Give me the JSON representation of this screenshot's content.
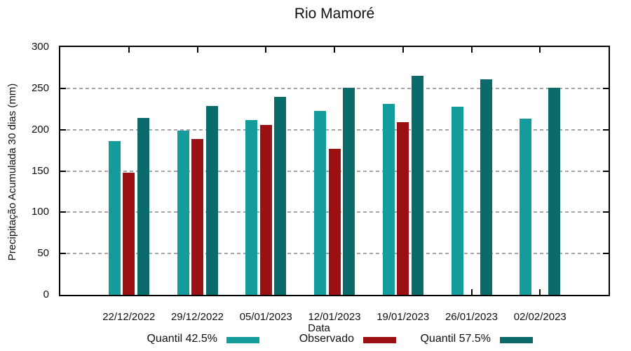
{
  "title": "Rio Mamoré",
  "colors": {
    "quantil_425": "#149b9b",
    "observado": "#9b1113",
    "quantil_575": "#0b6b6b",
    "grid": "#a6a6a6",
    "axis": "#000000"
  },
  "chart_data": {
    "type": "bar",
    "title": "Rio Mamoré",
    "xlabel": "Data",
    "ylabel": "Precipitação Acumulada 30 dias (mm)",
    "ylim": [
      0,
      300
    ],
    "yticks": [
      0,
      50,
      100,
      150,
      200,
      250,
      300
    ],
    "grid": "horizontal dotted gray lines at each ytick",
    "legend_position": "bottom, below x axis",
    "categories": [
      "22/12/2022",
      "29/12/2022",
      "05/01/2023",
      "12/01/2023",
      "19/01/2023",
      "26/01/2023",
      "02/02/2023"
    ],
    "series": [
      {
        "name": "Quantil 42.5%",
        "color": "#149b9b",
        "values": [
          186,
          199,
          212,
          223,
          231,
          228,
          213
        ]
      },
      {
        "name": "Observado",
        "color": "#9b1113",
        "values": [
          148,
          189,
          206,
          177,
          209,
          null,
          null
        ]
      },
      {
        "name": "Quantil 57.5%",
        "color": "#0b6b6b",
        "values": [
          214,
          229,
          240,
          251,
          265,
          261,
          251
        ]
      }
    ]
  }
}
